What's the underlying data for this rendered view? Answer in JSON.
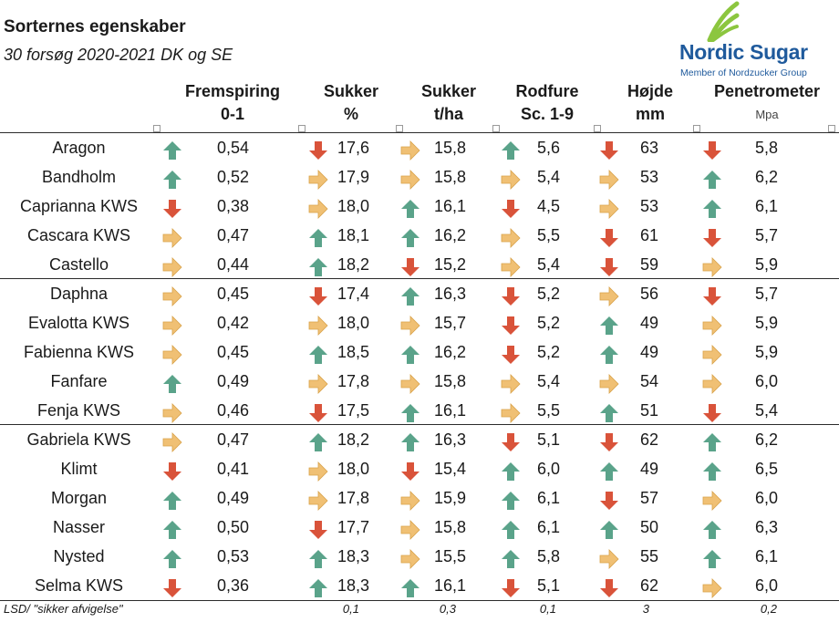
{
  "title": "Sorternes egenskaber",
  "subtitle": "30 forsøg 2020-2021 DK og SE",
  "logo": {
    "wordmark": "Nordic Sugar",
    "tagline": "Member of Nordzucker Group"
  },
  "colors": {
    "up": "#5aa38a",
    "down": "#d9533a",
    "side": "#f0c074",
    "brand_blue": "#1f5a9c",
    "brand_green": "#8cc63f"
  },
  "columns": [
    {
      "label": "Fremspiring",
      "unit": "0-1"
    },
    {
      "label": "Sukker",
      "unit": "%"
    },
    {
      "label": "Sukker",
      "unit": "t/ha"
    },
    {
      "label": "Rodfure",
      "unit": "Sc. 1-9"
    },
    {
      "label": "Højde",
      "unit": "mm"
    },
    {
      "label": "Penetrometer",
      "unit": "Mpa"
    }
  ],
  "rows": [
    {
      "name": "Aragon",
      "cells": [
        {
          "dir": "up",
          "value": "0,54"
        },
        {
          "dir": "down",
          "value": "17,6"
        },
        {
          "dir": "side",
          "value": "15,8"
        },
        {
          "dir": "up",
          "value": "5,6"
        },
        {
          "dir": "down",
          "value": "63"
        },
        {
          "dir": "down",
          "value": "5,8"
        }
      ]
    },
    {
      "name": "Bandholm",
      "cells": [
        {
          "dir": "up",
          "value": "0,52"
        },
        {
          "dir": "side",
          "value": "17,9"
        },
        {
          "dir": "side",
          "value": "15,8"
        },
        {
          "dir": "side",
          "value": "5,4"
        },
        {
          "dir": "side",
          "value": "53"
        },
        {
          "dir": "up",
          "value": "6,2"
        }
      ]
    },
    {
      "name": "Caprianna KWS",
      "cells": [
        {
          "dir": "down",
          "value": "0,38"
        },
        {
          "dir": "side",
          "value": "18,0"
        },
        {
          "dir": "up",
          "value": "16,1"
        },
        {
          "dir": "down",
          "value": "4,5"
        },
        {
          "dir": "side",
          "value": "53"
        },
        {
          "dir": "up",
          "value": "6,1"
        }
      ]
    },
    {
      "name": "Cascara KWS",
      "cells": [
        {
          "dir": "side",
          "value": "0,47"
        },
        {
          "dir": "up",
          "value": "18,1"
        },
        {
          "dir": "up",
          "value": "16,2"
        },
        {
          "dir": "side",
          "value": "5,5"
        },
        {
          "dir": "down",
          "value": "61"
        },
        {
          "dir": "down",
          "value": "5,7"
        }
      ]
    },
    {
      "name": "Castello",
      "cells": [
        {
          "dir": "side",
          "value": "0,44"
        },
        {
          "dir": "up",
          "value": "18,2"
        },
        {
          "dir": "down",
          "value": "15,2"
        },
        {
          "dir": "side",
          "value": "5,4"
        },
        {
          "dir": "down",
          "value": "59"
        },
        {
          "dir": "side",
          "value": "5,9"
        }
      ]
    },
    {
      "name": "Daphna",
      "cells": [
        {
          "dir": "side",
          "value": "0,45"
        },
        {
          "dir": "down",
          "value": "17,4"
        },
        {
          "dir": "up",
          "value": "16,3"
        },
        {
          "dir": "down",
          "value": "5,2"
        },
        {
          "dir": "side",
          "value": "56"
        },
        {
          "dir": "down",
          "value": "5,7"
        }
      ]
    },
    {
      "name": "Evalotta KWS",
      "cells": [
        {
          "dir": "side",
          "value": "0,42"
        },
        {
          "dir": "side",
          "value": "18,0"
        },
        {
          "dir": "side",
          "value": "15,7"
        },
        {
          "dir": "down",
          "value": "5,2"
        },
        {
          "dir": "up",
          "value": "49"
        },
        {
          "dir": "side",
          "value": "5,9"
        }
      ]
    },
    {
      "name": "Fabienna KWS",
      "cells": [
        {
          "dir": "side",
          "value": "0,45"
        },
        {
          "dir": "up",
          "value": "18,5"
        },
        {
          "dir": "up",
          "value": "16,2"
        },
        {
          "dir": "down",
          "value": "5,2"
        },
        {
          "dir": "up",
          "value": "49"
        },
        {
          "dir": "side",
          "value": "5,9"
        }
      ]
    },
    {
      "name": "Fanfare",
      "cells": [
        {
          "dir": "up",
          "value": "0,49"
        },
        {
          "dir": "side",
          "value": "17,8"
        },
        {
          "dir": "side",
          "value": "15,8"
        },
        {
          "dir": "side",
          "value": "5,4"
        },
        {
          "dir": "side",
          "value": "54"
        },
        {
          "dir": "side",
          "value": "6,0"
        }
      ]
    },
    {
      "name": "Fenja KWS",
      "cells": [
        {
          "dir": "side",
          "value": "0,46"
        },
        {
          "dir": "down",
          "value": "17,5"
        },
        {
          "dir": "up",
          "value": "16,1"
        },
        {
          "dir": "side",
          "value": "5,5"
        },
        {
          "dir": "up",
          "value": "51"
        },
        {
          "dir": "down",
          "value": "5,4"
        }
      ]
    },
    {
      "name": "Gabriela KWS",
      "cells": [
        {
          "dir": "side",
          "value": "0,47"
        },
        {
          "dir": "up",
          "value": "18,2"
        },
        {
          "dir": "up",
          "value": "16,3"
        },
        {
          "dir": "down",
          "value": "5,1"
        },
        {
          "dir": "down",
          "value": "62"
        },
        {
          "dir": "up",
          "value": "6,2"
        }
      ]
    },
    {
      "name": "Klimt",
      "cells": [
        {
          "dir": "down",
          "value": "0,41"
        },
        {
          "dir": "side",
          "value": "18,0"
        },
        {
          "dir": "down",
          "value": "15,4"
        },
        {
          "dir": "up",
          "value": "6,0"
        },
        {
          "dir": "up",
          "value": "49"
        },
        {
          "dir": "up",
          "value": "6,5"
        }
      ]
    },
    {
      "name": "Morgan",
      "cells": [
        {
          "dir": "up",
          "value": "0,49"
        },
        {
          "dir": "side",
          "value": "17,8"
        },
        {
          "dir": "side",
          "value": "15,9"
        },
        {
          "dir": "up",
          "value": "6,1"
        },
        {
          "dir": "down",
          "value": "57"
        },
        {
          "dir": "side",
          "value": "6,0"
        }
      ]
    },
    {
      "name": "Nasser",
      "cells": [
        {
          "dir": "up",
          "value": "0,50"
        },
        {
          "dir": "down",
          "value": "17,7"
        },
        {
          "dir": "side",
          "value": "15,8"
        },
        {
          "dir": "up",
          "value": "6,1"
        },
        {
          "dir": "up",
          "value": "50"
        },
        {
          "dir": "up",
          "value": "6,3"
        }
      ]
    },
    {
      "name": "Nysted",
      "cells": [
        {
          "dir": "up",
          "value": "0,53"
        },
        {
          "dir": "up",
          "value": "18,3"
        },
        {
          "dir": "side",
          "value": "15,5"
        },
        {
          "dir": "up",
          "value": "5,8"
        },
        {
          "dir": "side",
          "value": "55"
        },
        {
          "dir": "up",
          "value": "6,1"
        }
      ]
    },
    {
      "name": "Selma KWS",
      "cells": [
        {
          "dir": "down",
          "value": "0,36"
        },
        {
          "dir": "up",
          "value": "18,3"
        },
        {
          "dir": "up",
          "value": "16,1"
        },
        {
          "dir": "down",
          "value": "5,1"
        },
        {
          "dir": "down",
          "value": "62"
        },
        {
          "dir": "side",
          "value": "6,0"
        }
      ]
    }
  ],
  "lsd": {
    "label": "LSD/ \"sikker afvigelse\"",
    "values": [
      "0,1",
      "0,3",
      "0,1",
      "3",
      "0,2"
    ]
  }
}
